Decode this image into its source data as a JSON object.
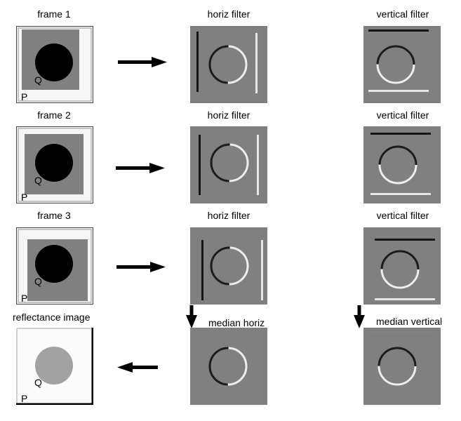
{
  "rows": [
    {
      "frame_label": "frame 1",
      "horiz_label": "horiz filter",
      "vert_label": "vertical filter"
    },
    {
      "frame_label": "frame 2",
      "horiz_label": "horiz filter",
      "vert_label": "vertical filter"
    },
    {
      "frame_label": "frame 3",
      "horiz_label": "horiz filter",
      "vert_label": "vertical filter"
    }
  ],
  "bottom": {
    "reflectance_label": "reflectance image",
    "median_horiz_label": "median horiz",
    "median_vert_label": "median vertical"
  },
  "point_labels": {
    "p": "P",
    "q": "Q"
  },
  "colors": {
    "filter_gray": "#808080",
    "frame_bg": "#f6f6f6",
    "disk": "#000000",
    "reflect_disk": "#a2a2a2"
  }
}
